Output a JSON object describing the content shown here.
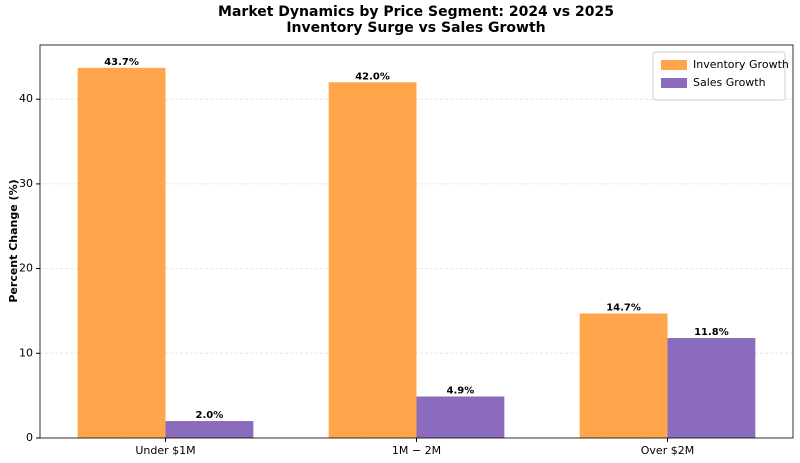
{
  "chart_data": {
    "type": "bar",
    "title": "Market Dynamics by Price Segment: 2024 vs 2025",
    "subtitle": "Inventory Surge vs Sales Growth",
    "y_label": "Percent Change (%)",
    "categories": [
      "Under $1M",
      "1M − 2M",
      "Over $2M"
    ],
    "series": [
      {
        "name": "Inventory Growth",
        "color": "#ffa64d",
        "values": [
          43.7,
          42.0,
          14.7
        ],
        "value_labels": [
          "43.7%",
          "42.0%",
          "14.7%"
        ]
      },
      {
        "name": "Sales Growth",
        "color": "#8a6bbe",
        "values": [
          2.0,
          4.9,
          11.8
        ],
        "value_labels": [
          "2.0%",
          "4.9%",
          "11.8%"
        ]
      }
    ],
    "ylim": [
      0,
      46.4
    ],
    "yticks": [
      0,
      10,
      20,
      30,
      40
    ],
    "grid": true,
    "legend": "upper right"
  }
}
